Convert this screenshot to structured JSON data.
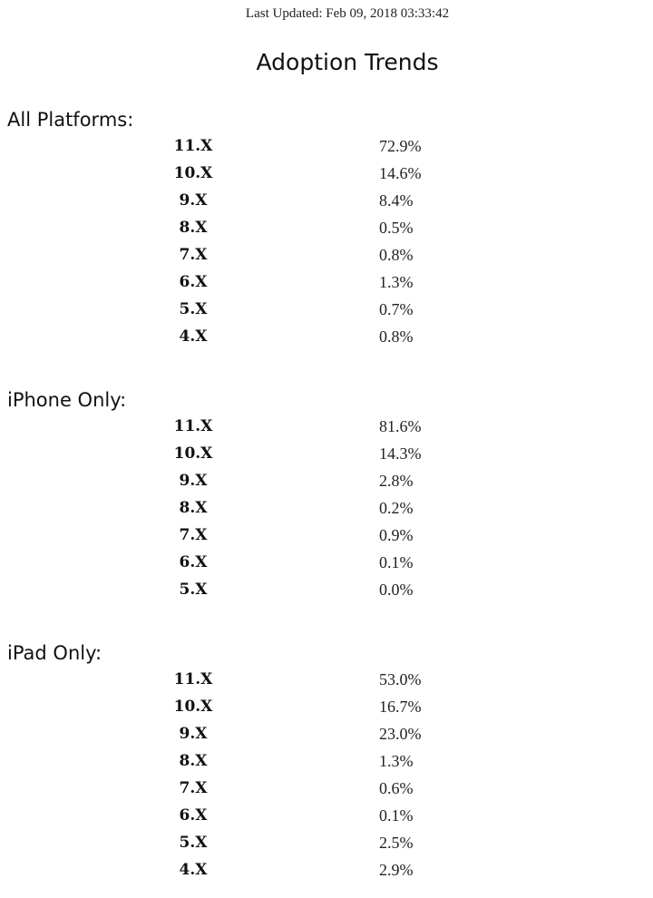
{
  "header": {
    "last_updated": "Last Updated: Feb 09, 2018 03:33:42",
    "title": "Adoption Trends"
  },
  "sections": [
    {
      "heading": "All Platforms:",
      "rows": [
        {
          "version": "11.X",
          "value": "72.9%"
        },
        {
          "version": "10.X",
          "value": "14.6%"
        },
        {
          "version": "9.X",
          "value": "8.4%"
        },
        {
          "version": "8.X",
          "value": "0.5%"
        },
        {
          "version": "7.X",
          "value": "0.8%"
        },
        {
          "version": "6.X",
          "value": "1.3%"
        },
        {
          "version": "5.X",
          "value": "0.7%"
        },
        {
          "version": "4.X",
          "value": "0.8%"
        }
      ]
    },
    {
      "heading": "iPhone Only:",
      "rows": [
        {
          "version": "11.X",
          "value": "81.6%"
        },
        {
          "version": "10.X",
          "value": "14.3%"
        },
        {
          "version": "9.X",
          "value": "2.8%"
        },
        {
          "version": "8.X",
          "value": "0.2%"
        },
        {
          "version": "7.X",
          "value": "0.9%"
        },
        {
          "version": "6.X",
          "value": "0.1%"
        },
        {
          "version": "5.X",
          "value": "0.0%"
        }
      ]
    },
    {
      "heading": "iPad Only:",
      "rows": [
        {
          "version": "11.X",
          "value": "53.0%"
        },
        {
          "version": "10.X",
          "value": "16.7%"
        },
        {
          "version": "9.X",
          "value": "23.0%"
        },
        {
          "version": "8.X",
          "value": "1.3%"
        },
        {
          "version": "7.X",
          "value": "0.6%"
        },
        {
          "version": "6.X",
          "value": "0.1%"
        },
        {
          "version": "5.X",
          "value": "2.5%"
        },
        {
          "version": "4.X",
          "value": "2.9%"
        }
      ]
    }
  ]
}
